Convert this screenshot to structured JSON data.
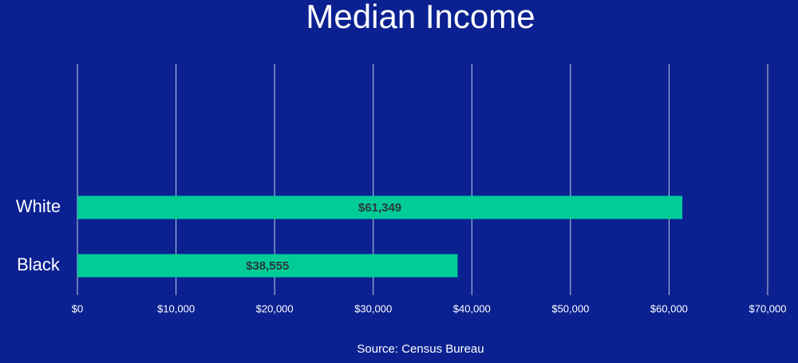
{
  "chart_data": {
    "type": "bar",
    "orientation": "horizontal",
    "title": "Median Income",
    "categories": [
      "White",
      "Black"
    ],
    "values": [
      61349,
      38555
    ],
    "value_labels": [
      "$61,349",
      "$38,555"
    ],
    "color": "#00cc99",
    "xlim": [
      0,
      70000
    ],
    "xticks": [
      {
        "value": 0,
        "label": "$0"
      },
      {
        "value": 10000,
        "label": "$10,000"
      },
      {
        "value": 20000,
        "label": "$20,000"
      },
      {
        "value": 30000,
        "label": "$30,000"
      },
      {
        "value": 40000,
        "label": "$40,000"
      },
      {
        "value": 50000,
        "label": "$50,000"
      },
      {
        "value": 60000,
        "label": "$60,000"
      },
      {
        "value": 70000,
        "label": "$70,000"
      }
    ],
    "grid": true,
    "source": "Source: Census Bureau"
  }
}
